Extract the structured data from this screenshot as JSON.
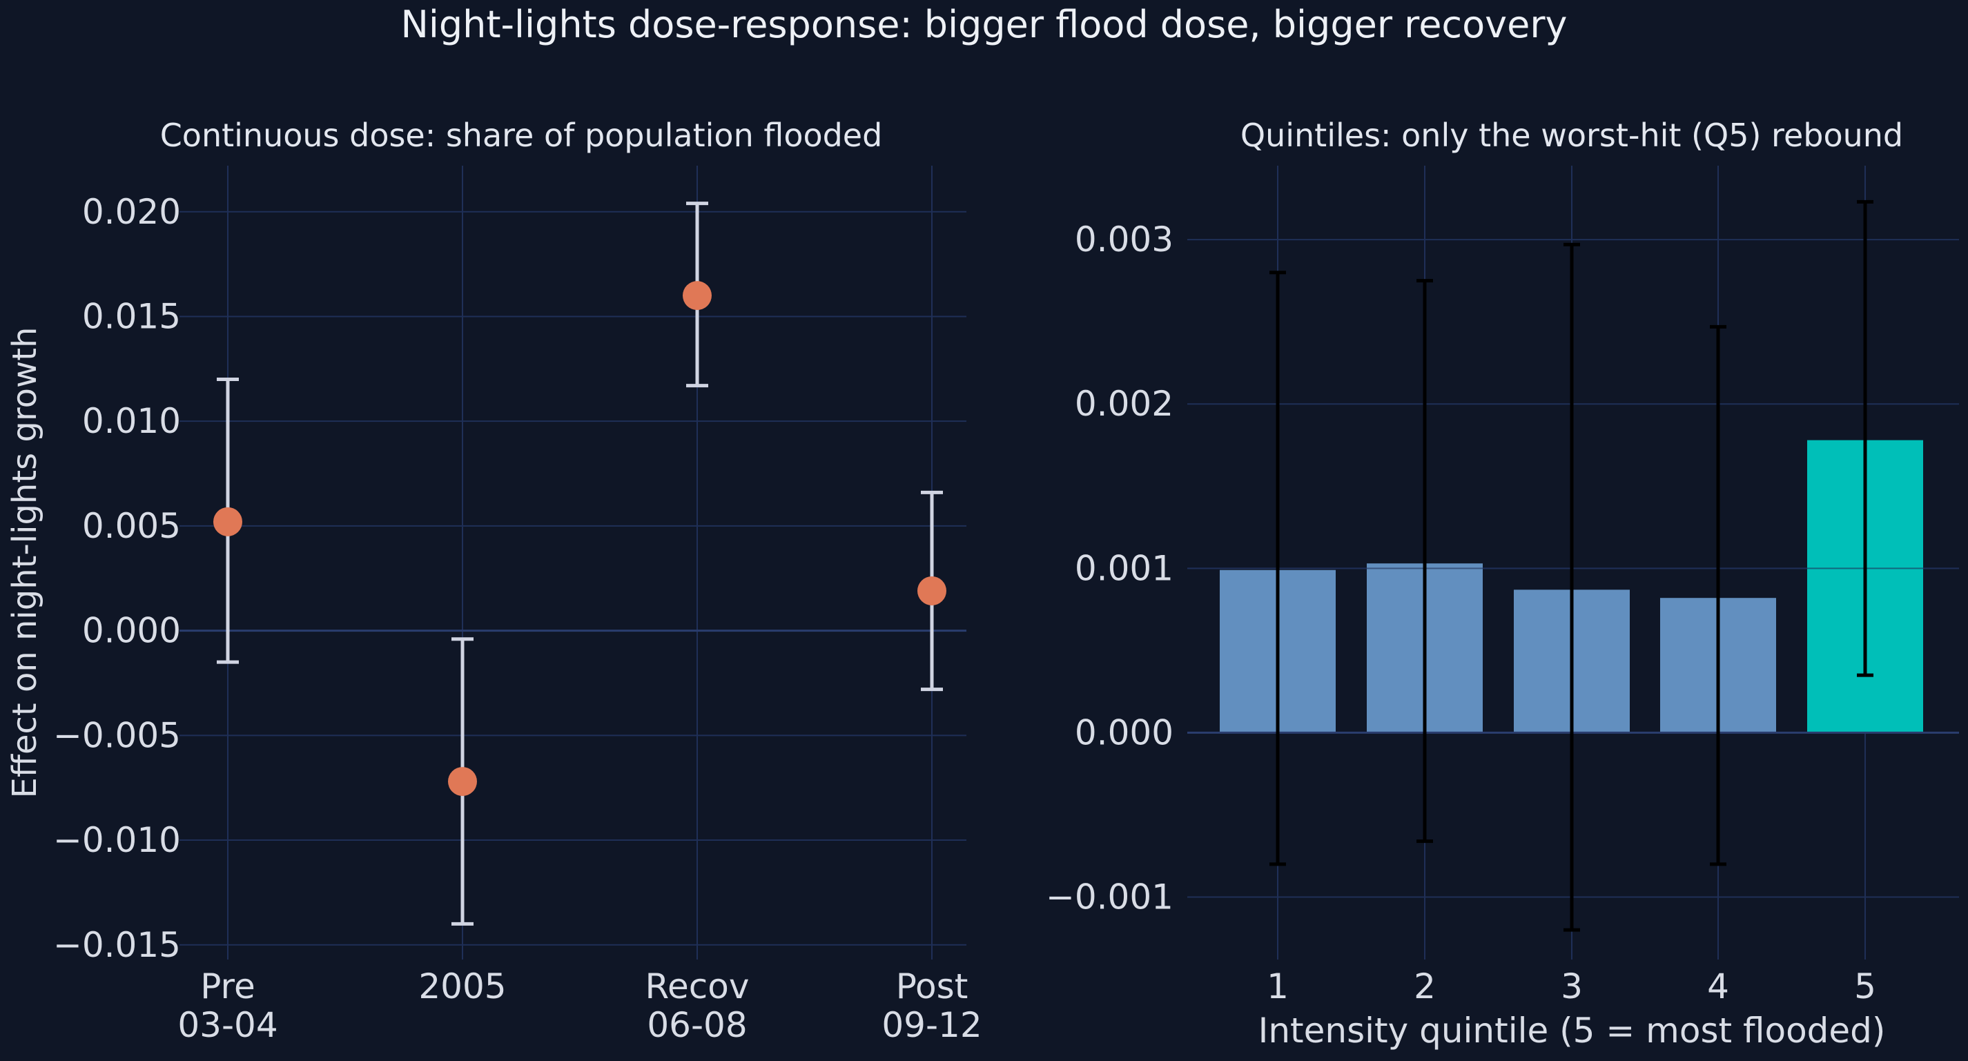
{
  "figure": {
    "title": "Night-lights dose-response: bigger flood dose, bigger recovery"
  },
  "colors": {
    "background": "#0f1626",
    "grid": "#1f2f57",
    "zero_line": "#2a3d6e",
    "text": "#d9dde6",
    "point": "#e07856",
    "point_errorbar": "#d0d4e2",
    "bar": "#628fbf",
    "bar_highlight": "#00bfb8",
    "bar_errorbar": "#000000"
  },
  "chart_data": [
    {
      "type": "scatter",
      "title": "Continuous dose: share of population flooded",
      "ylabel": "Effect on night-lights growth",
      "xlabel": "",
      "categories": [
        "Pre\n03-04",
        "2005",
        "Recov\n06-08",
        "Post\n09-12"
      ],
      "values": [
        0.0052,
        -0.0072,
        0.016,
        0.0019
      ],
      "error_low": [
        -0.0015,
        -0.014,
        0.0117,
        -0.0028
      ],
      "error_high": [
        0.012,
        -0.0004,
        0.0204,
        0.0066
      ],
      "ylim": [
        -0.0157,
        0.0222
      ],
      "yticks": [
        -0.015,
        -0.01,
        -0.005,
        0.0,
        0.005,
        0.01,
        0.015,
        0.02
      ],
      "ytick_labels": [
        "−0.015",
        "−0.010",
        "−0.005",
        "0.000",
        "0.005",
        "0.010",
        "0.015",
        "0.020"
      ],
      "grid": true
    },
    {
      "type": "bar",
      "title": "Quintiles: only the worst-hit (Q5) rebound",
      "xlabel": "Intensity quintile (5 = most flooded)",
      "ylabel": "",
      "categories": [
        "1",
        "2",
        "3",
        "4",
        "5"
      ],
      "values": [
        0.00099,
        0.00103,
        0.00087,
        0.00082,
        0.00178
      ],
      "error_low": [
        -0.0008,
        -0.00066,
        -0.0012,
        -0.0008,
        0.00035
      ],
      "error_high": [
        0.0028,
        0.00275,
        0.00297,
        0.00247,
        0.00323
      ],
      "highlight_index": 4,
      "ylim": [
        -0.00138,
        0.00345
      ],
      "yticks": [
        -0.001,
        0.0,
        0.001,
        0.002,
        0.003
      ],
      "ytick_labels": [
        "−0.001",
        "0.000",
        "0.001",
        "0.002",
        "0.003"
      ],
      "grid": true
    }
  ]
}
